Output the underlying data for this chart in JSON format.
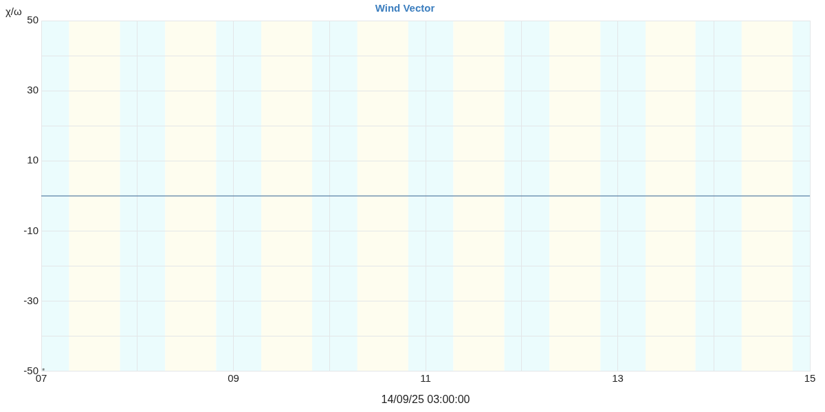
{
  "chart_data": {
    "type": "line",
    "title": "Wind Vector",
    "xlabel": "14/09/25 03:00:00",
    "ylabel": "χ/ω",
    "xlim": [
      7,
      15
    ],
    "ylim": [
      -50,
      50
    ],
    "xticks": [
      {
        "value": 7,
        "label": "07"
      },
      {
        "value": 8,
        "label": null
      },
      {
        "value": 9,
        "label": "09"
      },
      {
        "value": 10,
        "label": null
      },
      {
        "value": 11,
        "label": "11"
      },
      {
        "value": 12,
        "label": null
      },
      {
        "value": 13,
        "label": "13"
      },
      {
        "value": 14,
        "label": null
      },
      {
        "value": 15,
        "label": "15"
      }
    ],
    "yticks": [
      -50,
      {
        "value": -40,
        "label": null
      },
      -30,
      {
        "value": -20,
        "label": null
      },
      -10,
      {
        "value": 0,
        "label": null
      },
      10,
      {
        "value": 20,
        "label": null
      },
      30,
      {
        "value": 40,
        "label": null
      },
      50
    ],
    "grid": true,
    "legend": false,
    "series": [
      {
        "color": "#5b82a6",
        "x": [
          7,
          15
        ],
        "values": [
          0,
          0
        ]
      }
    ],
    "bands": [
      {
        "axis": "x",
        "from": 7,
        "to": 7.29,
        "color": "#ebfcfd"
      },
      {
        "axis": "x",
        "from": 7.29,
        "to": 7.82,
        "color": "#fefdef"
      },
      {
        "axis": "x",
        "from": 7.82,
        "to": 8.29,
        "color": "#ebfcfd"
      },
      {
        "axis": "x",
        "from": 8.29,
        "to": 8.82,
        "color": "#fefdef"
      },
      {
        "axis": "x",
        "from": 8.82,
        "to": 9.29,
        "color": "#ebfcfd"
      },
      {
        "axis": "x",
        "from": 9.29,
        "to": 9.82,
        "color": "#fefdef"
      },
      {
        "axis": "x",
        "from": 9.82,
        "to": 10.29,
        "color": "#ebfcfd"
      },
      {
        "axis": "x",
        "from": 10.29,
        "to": 10.82,
        "color": "#fefdef"
      },
      {
        "axis": "x",
        "from": 10.82,
        "to": 11.29,
        "color": "#ebfcfd"
      },
      {
        "axis": "x",
        "from": 11.29,
        "to": 11.82,
        "color": "#fefdef"
      },
      {
        "axis": "x",
        "from": 11.82,
        "to": 12.29,
        "color": "#ebfcfd"
      },
      {
        "axis": "x",
        "from": 12.29,
        "to": 12.82,
        "color": "#fefdef"
      },
      {
        "axis": "x",
        "from": 12.82,
        "to": 13.29,
        "color": "#ebfcfd"
      },
      {
        "axis": "x",
        "from": 13.29,
        "to": 13.81,
        "color": "#fefdef"
      },
      {
        "axis": "x",
        "from": 13.81,
        "to": 14.29,
        "color": "#ebfcfd"
      },
      {
        "axis": "x",
        "from": 14.29,
        "to": 14.82,
        "color": "#fefdef"
      },
      {
        "axis": "x",
        "from": 14.82,
        "to": 15,
        "color": "#ebfcfd"
      }
    ],
    "annotations": [
      {
        "text": "*",
        "x": 7,
        "y": -50
      }
    ]
  }
}
